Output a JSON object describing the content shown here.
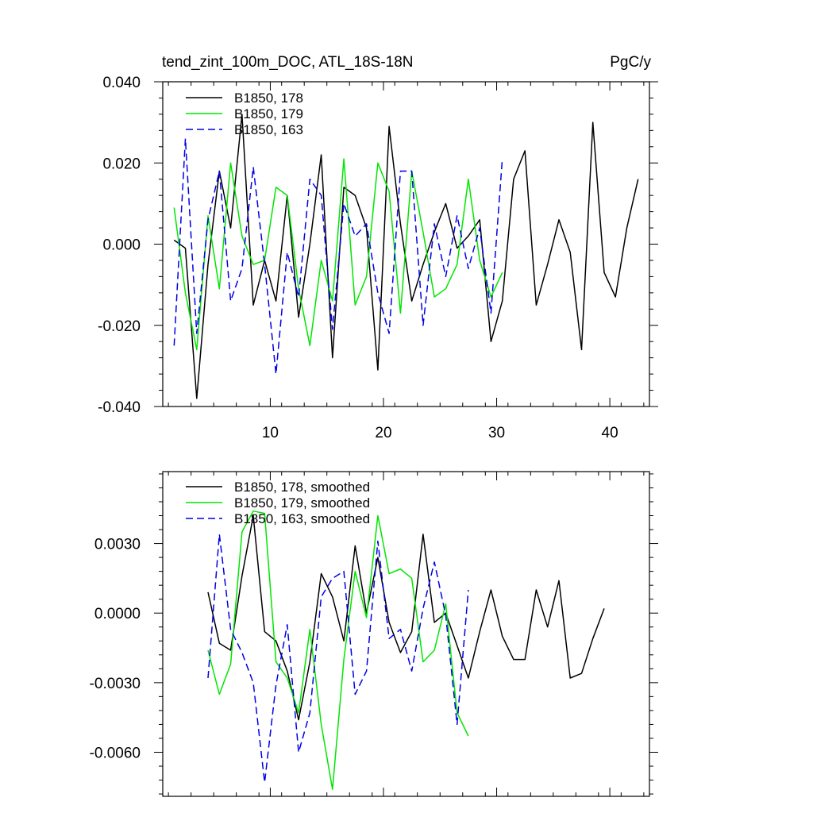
{
  "chart_data": [
    {
      "type": "line",
      "title": "tend_zint_100m_DOC, ATL_18S-18N",
      "units": "PgC/y",
      "xlabel": "",
      "ylabel": "",
      "xlim": [
        0.5,
        43.5
      ],
      "ylim": [
        -0.04,
        0.04
      ],
      "x_ticks": [
        10,
        20,
        30,
        40
      ],
      "y_ticks": [
        -0.04,
        -0.02,
        0.0,
        0.02,
        0.04
      ],
      "y_tick_labels": [
        "-0.040",
        "-0.020",
        "0.000",
        "0.020",
        "0.040"
      ],
      "x_tick_labels": [
        "10",
        "20",
        "30",
        "40"
      ],
      "legend_position": "top-left",
      "series": [
        {
          "name": "B1850, 178",
          "color": "#000000",
          "dash": "solid",
          "x": [
            1.5,
            2.5,
            3.5,
            4.5,
            5.5,
            6.5,
            7.5,
            8.5,
            9.5,
            10.5,
            11.5,
            12.5,
            13.5,
            14.5,
            15.5,
            16.5,
            17.5,
            18.5,
            19.5,
            20.5,
            21.5,
            22.5,
            23.5,
            24.5,
            25.5,
            26.5,
            27.5,
            28.5,
            29.5,
            30.5,
            31.5,
            32.5,
            33.5,
            34.5,
            35.5,
            36.5,
            37.5,
            38.5,
            39.5,
            40.5,
            41.5,
            42.5
          ],
          "values": [
            0.001,
            -0.001,
            -0.038,
            -0.005,
            0.018,
            0.004,
            0.032,
            -0.015,
            -0.004,
            -0.014,
            0.012,
            -0.018,
            0.0,
            0.022,
            -0.028,
            0.014,
            0.012,
            0.004,
            -0.031,
            0.029,
            0.005,
            -0.014,
            -0.005,
            0.003,
            0.01,
            -0.001,
            0.002,
            0.006,
            -0.024,
            -0.014,
            0.016,
            0.023,
            -0.015,
            -0.005,
            0.006,
            -0.002,
            -0.026,
            0.03,
            -0.007,
            -0.013,
            0.004,
            0.016
          ]
        },
        {
          "name": "B1850, 179",
          "color": "#00e600",
          "dash": "solid",
          "x": [
            1.5,
            2.5,
            3.5,
            4.5,
            5.5,
            6.5,
            7.5,
            8.5,
            9.5,
            10.5,
            11.5,
            12.5,
            13.5,
            14.5,
            15.5,
            16.5,
            17.5,
            18.5,
            19.5,
            20.5,
            21.5,
            22.5,
            23.5,
            24.5,
            25.5,
            26.5,
            27.5,
            28.5,
            29.5,
            30.5
          ],
          "values": [
            0.009,
            -0.012,
            -0.026,
            0.007,
            -0.011,
            0.02,
            0.002,
            -0.005,
            -0.004,
            0.014,
            0.012,
            -0.011,
            -0.025,
            -0.004,
            -0.014,
            0.021,
            -0.015,
            -0.008,
            0.02,
            0.013,
            -0.017,
            0.018,
            0.003,
            -0.013,
            -0.011,
            -0.005,
            0.016,
            -0.004,
            -0.013,
            -0.007
          ]
        },
        {
          "name": "B1850, 163",
          "color": "#0000e6",
          "dash": "dashed",
          "x": [
            1.5,
            2.5,
            3.5,
            4.5,
            5.5,
            6.5,
            7.5,
            8.5,
            9.5,
            10.5,
            11.5,
            12.5,
            13.5,
            14.5,
            15.5,
            16.5,
            17.5,
            18.5,
            19.5,
            20.5,
            21.5,
            22.5,
            23.5,
            24.5,
            25.5,
            26.5,
            27.5,
            28.5,
            29.5,
            30.5
          ],
          "values": [
            -0.025,
            0.026,
            -0.022,
            0.006,
            0.018,
            -0.014,
            -0.006,
            0.019,
            -0.005,
            -0.032,
            -0.002,
            -0.013,
            0.016,
            0.012,
            -0.021,
            0.01,
            0.002,
            0.005,
            -0.012,
            -0.022,
            0.018,
            0.018,
            -0.02,
            0.005,
            -0.008,
            0.007,
            -0.006,
            0.004,
            -0.017,
            0.021
          ]
        }
      ]
    },
    {
      "type": "line",
      "title": "",
      "xlabel": "",
      "ylabel": "",
      "xlim": [
        0.5,
        43.5
      ],
      "ylim": [
        -0.0079,
        0.0061
      ],
      "x_ticks": [
        10,
        20,
        30,
        40
      ],
      "y_ticks": [
        -0.006,
        -0.003,
        0.0,
        0.003
      ],
      "y_tick_labels": [
        "-0.0060",
        "-0.0030",
        "0.0000",
        "0.0030"
      ],
      "legend_position": "top-left",
      "series": [
        {
          "name": "B1850, 178, smoothed",
          "color": "#000000",
          "dash": "solid",
          "x": [
            4.5,
            5.5,
            6.5,
            7.5,
            8.5,
            9.5,
            10.5,
            11.5,
            12.5,
            13.5,
            14.5,
            15.5,
            16.5,
            17.5,
            18.5,
            19.5,
            20.5,
            21.5,
            22.5,
            23.5,
            24.5,
            25.5,
            26.5,
            27.5,
            28.5,
            29.5,
            30.5,
            31.5,
            32.5,
            33.5,
            34.5,
            35.5,
            36.5,
            37.5,
            38.5,
            39.5
          ],
          "values": [
            0.0009,
            -0.0013,
            -0.0016,
            0.0016,
            0.0042,
            -0.0008,
            -0.0012,
            -0.0025,
            -0.0046,
            -0.0021,
            0.0017,
            0.0007,
            -0.0012,
            0.0029,
            0.0,
            0.0024,
            -0.0004,
            -0.0017,
            -0.0008,
            0.0034,
            -0.0004,
            0.0,
            -0.0014,
            -0.0028,
            -0.0008,
            0.001,
            -0.001,
            -0.002,
            -0.002,
            0.001,
            -0.0006,
            0.0014,
            -0.0028,
            -0.0026,
            -0.0011,
            0.0002
          ]
        },
        {
          "name": "B1850, 179, smoothed",
          "color": "#00e600",
          "dash": "solid",
          "x": [
            4.5,
            5.5,
            6.5,
            7.5,
            8.5,
            9.5,
            10.5,
            11.5,
            12.5,
            13.5,
            14.5,
            15.5,
            16.5,
            17.5,
            18.5,
            19.5,
            20.5,
            21.5,
            22.5,
            23.5,
            24.5,
            25.5,
            26.5,
            27.5
          ],
          "values": [
            -0.0016,
            -0.0035,
            -0.0022,
            0.0035,
            0.0044,
            0.0043,
            -0.0021,
            -0.0028,
            -0.0043,
            -0.0007,
            -0.0048,
            -0.0076,
            -0.002,
            0.0018,
            -0.0002,
            0.0042,
            0.0017,
            0.0019,
            0.0015,
            -0.0021,
            -0.0016,
            0.0004,
            -0.0043,
            -0.0053
          ]
        },
        {
          "name": "B1850, 163, smoothed",
          "color": "#0000e6",
          "dash": "dashed",
          "x": [
            4.5,
            5.5,
            6.5,
            7.5,
            8.5,
            9.5,
            10.5,
            11.5,
            12.5,
            13.5,
            14.5,
            15.5,
            16.5,
            17.5,
            18.5,
            19.5,
            20.5,
            21.5,
            22.5,
            23.5,
            24.5,
            25.5,
            26.5,
            27.5
          ],
          "values": [
            -0.0028,
            0.0034,
            -0.0007,
            -0.0017,
            -0.003,
            -0.0073,
            -0.0031,
            -0.0005,
            -0.006,
            -0.0043,
            0.0007,
            0.0015,
            0.0018,
            -0.0035,
            -0.0025,
            0.0031,
            -0.0011,
            -0.0007,
            -0.0025,
            0.0002,
            0.0022,
            -0.0001,
            -0.0048,
            0.001
          ]
        }
      ]
    }
  ]
}
